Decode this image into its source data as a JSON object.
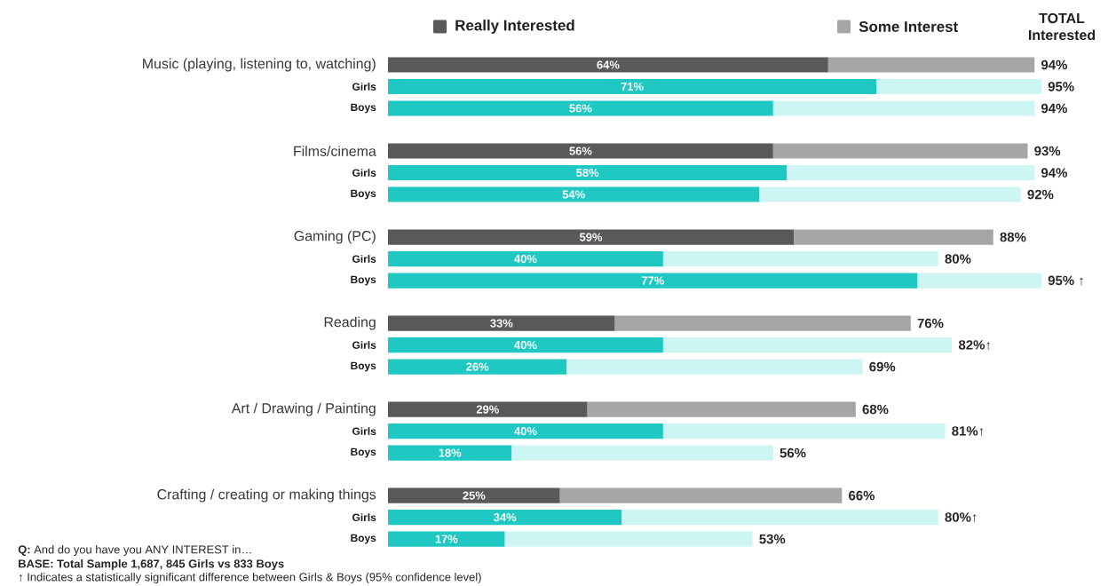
{
  "chart_data": {
    "type": "bar",
    "orientation": "horizontal",
    "stacked": true,
    "legend": "top",
    "tick_labels": "y",
    "categories": [
      "Music (playing, listening to, watching)",
      "Girls",
      "Boys",
      "Films/cinema",
      "Girls",
      "Boys",
      "Gaming (PC)",
      "Girls",
      "Boys",
      "Reading",
      "Girls",
      "Boys",
      "Art / Drawing / Painting",
      "Girls",
      "Boys",
      "Crafting / creating or making things",
      "Girls",
      "Boys"
    ],
    "series": [
      {
        "name": "Really Interested",
        "color": "#595959",
        "colors": [
          "#595959",
          "#1fc8c3",
          "#1fc8c3",
          "#595959",
          "#1fc8c3",
          "#1fc8c3",
          "#595959",
          "#1fc8c3",
          "#1fc8c3",
          "#595959",
          "#1fc8c3",
          "#1fc8c3",
          "#595959",
          "#1fc8c3",
          "#1fc8c3",
          "#595959",
          "#1fc8c3",
          "#1fc8c3"
        ],
        "values": [
          64,
          71,
          56,
          56,
          58,
          54,
          59,
          40,
          77,
          33,
          40,
          26,
          29,
          40,
          18,
          25,
          34,
          17
        ],
        "value_labels": [
          "64%",
          "71%",
          "56%",
          "56%",
          "58%",
          "54%",
          "59%",
          "40%",
          "77%",
          "33%",
          "40%",
          "26%",
          "29%",
          "40%",
          "18%",
          "25%",
          "34%",
          "17%"
        ]
      },
      {
        "name": "Some Interest",
        "color": "#a6a6a6",
        "colors": [
          "#a6a6a6",
          "#ccf5f4",
          "#ccf5f4",
          "#a6a6a6",
          "#ccf5f4",
          "#ccf5f4",
          "#a6a6a6",
          "#ccf5f4",
          "#ccf5f4",
          "#a6a6a6",
          "#ccf5f4",
          "#ccf5f4",
          "#a6a6a6",
          "#ccf5f4",
          "#ccf5f4",
          "#a6a6a6",
          "#ccf5f4",
          "#ccf5f4"
        ],
        "values": [
          30,
          24,
          38,
          37,
          36,
          38,
          29,
          40,
          18,
          43,
          42,
          43,
          39,
          41,
          38,
          41,
          46,
          36
        ]
      }
    ],
    "totals": [
      "94%",
      "95%",
      "94%",
      "93%",
      "94%",
      "92%",
      "88%",
      "80%",
      "95% ↑",
      "76%",
      "82%↑",
      "69%",
      "68%",
      "81%↑",
      "56%",
      "66%",
      "80%↑",
      "53%"
    ],
    "annotations": [
      "TOTAL Interested",
      "**Q:** And do you have you ANY INTEREST in…",
      "BASE: Total Sample 1,687, 845 Girls vs 833 Boys",
      "↑ Indicates a statistically significant difference between Girls & Boys (95% confidence level)"
    ]
  }
}
